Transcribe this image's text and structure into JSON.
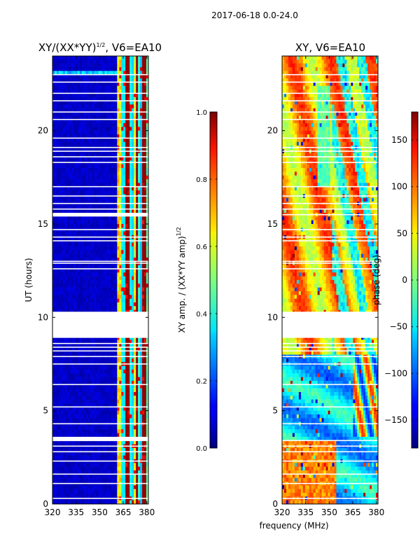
{
  "figure": {
    "suptitle": "2017-06-18 0.0-24.0",
    "xlabel": "frequency (MHz)"
  },
  "chart_data": [
    {
      "type": "heatmap",
      "id": "amp",
      "title_prefix": "XY/(XX*YY)",
      "title_exponent": "1/2",
      "title_suffix": ", V6=EA10",
      "ylabel": "UT (hours)",
      "xlim": [
        320,
        381
      ],
      "ylim": [
        0,
        24
      ],
      "xticks": [
        320,
        335,
        350,
        365,
        380
      ],
      "yticks": [
        0,
        5,
        10,
        15,
        20
      ],
      "gap_rows_hours": [
        23.0,
        22.6,
        22.0,
        21.6,
        21.0,
        20.6,
        19.6,
        19.1,
        18.9,
        18.6,
        18.3,
        17.0,
        16.5,
        16.1,
        15.8,
        15.5,
        14.7,
        14.3,
        14.1,
        13.0,
        12.9,
        12.6,
        8.6,
        8.4,
        8.2,
        7.9,
        7.5,
        6.4,
        5.2,
        4.3,
        3.4,
        3.1,
        2.8,
        2.3,
        1.6,
        1.1,
        0.3
      ],
      "gap_band_hours": [
        [
          3.4,
          3.6
        ],
        [
          8.9,
          10.3
        ],
        [
          15.4,
          15.6
        ]
      ],
      "data_note": "normalized XY amplitude; low (~0.05) below ~362 MHz, bright channels (~0.4-0.9) between ~362 and ~381 MHz",
      "colorbar": {
        "label_prefix": "XY amp. / (XX*YY amp)",
        "label_exponent": "1/2",
        "range": [
          0.0,
          1.0
        ],
        "ticks": [
          0.0,
          0.2,
          0.4,
          0.6,
          0.8,
          1.0
        ],
        "tick_labels": [
          "0.0",
          "0.2",
          "0.4",
          "0.6",
          "0.8",
          "1.0"
        ]
      }
    },
    {
      "type": "heatmap",
      "id": "phase",
      "title": "XY, V6=EA10",
      "xlim": [
        320,
        381
      ],
      "ylim": [
        0,
        24
      ],
      "xticks": [
        320,
        335,
        350,
        365,
        380
      ],
      "yticks": [
        0,
        5,
        10,
        15,
        20
      ],
      "gap_rows_hours": [
        23.0,
        22.6,
        22.0,
        21.6,
        21.0,
        20.6,
        19.6,
        19.1,
        18.9,
        18.6,
        18.3,
        17.0,
        16.5,
        16.1,
        15.8,
        15.5,
        14.7,
        14.3,
        14.1,
        13.0,
        12.9,
        12.6,
        8.6,
        8.4,
        8.2,
        7.9,
        7.5,
        6.4,
        5.2,
        4.3,
        3.4,
        3.1,
        2.8,
        2.3,
        1.6,
        1.1,
        0.3
      ],
      "gap_band_hours": [
        [
          8.9,
          10.3
        ]
      ],
      "data_note": "XY phase in degrees; mostly yellow/orange (~+30 to +120) with blue/cyan regions at higher frequency and 0-8 UT",
      "colorbar": {
        "label": "phase (deg)",
        "range": [
          -180,
          180
        ],
        "ticks": [
          -150,
          -100,
          -50,
          0,
          50,
          100,
          150
        ],
        "tick_labels": [
          "−150",
          "−100",
          "−50",
          "0",
          "50",
          "100",
          "150"
        ]
      }
    }
  ]
}
